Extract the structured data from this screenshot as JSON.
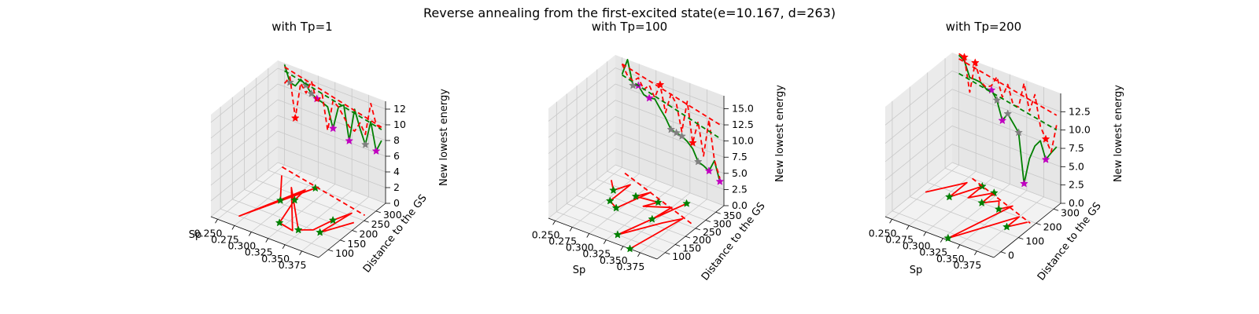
{
  "figure": {
    "suptitle": "Reverse annealing from the first-excited state(e=10.167, d=263)"
  },
  "chart_data": [
    {
      "type": "line3d",
      "title": "with Tp=1",
      "xlabel": "Sp",
      "ylabel": "Distance to the GS",
      "zlabel": "New lowest energy",
      "xlim": [
        0.24,
        0.4
      ],
      "ylim": [
        60,
        340
      ],
      "zlim": [
        0,
        13
      ],
      "xticks": [
        "0.250",
        "0.275",
        "0.300",
        "0.325",
        "0.350",
        "0.375"
      ],
      "yticks": [
        "100",
        "150",
        "200",
        "250",
        "300"
      ],
      "zticks": [
        "0",
        "2",
        "4",
        "6",
        "8",
        "10",
        "12"
      ],
      "series": [
        {
          "color": "#008000",
          "style": "solid",
          "marker_color": "#808080",
          "x": [
            0.25,
            0.258,
            0.266,
            0.274,
            0.282,
            0.29,
            0.298,
            0.306,
            0.314,
            0.322,
            0.33,
            0.338,
            0.346,
            0.354,
            0.362,
            0.37,
            0.378,
            0.386,
            0.394
          ],
          "z": [
            12.8,
            10.8,
            10.6,
            11.7,
            11.2,
            10.4,
            10.0,
            9.8,
            9.5,
            7.0,
            10.0,
            10.5,
            6.2,
            10.5,
            8.3,
            6.5,
            9.7,
            6.2,
            7.8
          ],
          "markers": [
            1,
            4,
            5,
            6,
            9,
            12,
            15,
            17
          ],
          "marker_colors": [
            "#808080",
            "#808080",
            "#808080",
            "#c000c0",
            "#c000c0",
            "#c000c0",
            "#808080",
            "#c000c0"
          ]
        },
        {
          "color": "#ff0000",
          "style": "dashed",
          "x": [
            0.25,
            0.258,
            0.266,
            0.274,
            0.282,
            0.29,
            0.298,
            0.306,
            0.314,
            0.322,
            0.33,
            0.338,
            0.346,
            0.354,
            0.362,
            0.37,
            0.378,
            0.386,
            0.394
          ],
          "z": [
            10.4,
            11.5,
            6.5,
            11.2,
            10.2,
            12.0,
            9.5,
            10.8,
            6.5,
            10.5,
            10.0,
            9.0,
            8.0,
            7.7,
            9.0,
            7.8,
            12.0,
            9.6,
            9.2
          ],
          "markers": [
            2
          ],
          "marker_colors": [
            "#ff0000"
          ]
        },
        {
          "color": "#ff0000",
          "style": "dashed",
          "trend": true,
          "x": [
            0.25,
            0.394
          ],
          "z": [
            12.5,
            9.5
          ]
        },
        {
          "color": "#008000",
          "style": "dashed",
          "trend": true,
          "x": [
            0.25,
            0.394
          ],
          "z": [
            12.0,
            9.2
          ]
        },
        {
          "color": "#ff0000",
          "style": "solid",
          "marker_color": "#008000",
          "projection": "floor",
          "x": [
            0.26,
            0.29,
            0.31,
            0.268,
            0.302,
            0.304,
            0.317,
            0.34,
            0.285,
            0.345,
            0.36,
            0.368,
            0.378,
            0.37,
            0.392
          ],
          "y": [
            300,
            210,
            300,
            100,
            280,
            230,
            130,
            120,
            270,
            130,
            150,
            210,
            260,
            150,
            230
          ],
          "markers": [
            1,
            2,
            5,
            6,
            9,
            11,
            13
          ]
        },
        {
          "color": "#ff0000",
          "style": "dashed",
          "trend": true,
          "projection": "floor",
          "x": [
            0.25,
            0.394
          ],
          "y": [
            330,
            270
          ]
        }
      ]
    },
    {
      "type": "line3d",
      "title": "with Tp=100",
      "xlabel": "Sp",
      "ylabel": "Distance to the GS",
      "zlabel": "New lowest energy",
      "xlim": [
        0.24,
        0.4
      ],
      "ylim": [
        60,
        390
      ],
      "zlim": [
        0,
        17
      ],
      "xticks": [
        "0.250",
        "0.275",
        "0.300",
        "0.325",
        "0.350",
        "0.375"
      ],
      "yticks": [
        "100",
        "150",
        "200",
        "250",
        "300",
        "350"
      ],
      "zticks": [
        "0.0",
        "2.5",
        "5.0",
        "7.5",
        "10.0",
        "12.5",
        "15.0"
      ],
      "series": [
        {
          "color": "#008000",
          "style": "solid",
          "x": [
            0.25,
            0.258,
            0.266,
            0.274,
            0.282,
            0.29,
            0.298,
            0.306,
            0.314,
            0.322,
            0.33,
            0.338,
            0.346,
            0.354,
            0.362,
            0.37,
            0.378,
            0.386,
            0.394
          ],
          "z": [
            14.4,
            17.0,
            13.3,
            13.6,
            12.5,
            12.3,
            12.5,
            11.3,
            10.2,
            8.7,
            8.5,
            8.3,
            7.8,
            7.0,
            5.3,
            5.0,
            4.5,
            6.4,
            3.5
          ],
          "markers": [
            2,
            3,
            5,
            9,
            10,
            11,
            14,
            16,
            18
          ],
          "marker_colors": [
            "#808080",
            "#c000c0",
            "#c000c0",
            "#808080",
            "#808080",
            "#808080",
            "#808080",
            "#c000c0",
            "#c000c0"
          ]
        },
        {
          "color": "#ff0000",
          "style": "dashed",
          "x": [
            0.25,
            0.258,
            0.266,
            0.274,
            0.282,
            0.29,
            0.298,
            0.306,
            0.314,
            0.322,
            0.33,
            0.338,
            0.346,
            0.354,
            0.362,
            0.37,
            0.378,
            0.386,
            0.394
          ],
          "z": [
            16.0,
            14.5,
            14.0,
            14.8,
            13.3,
            14.3,
            12.7,
            15.0,
            11.0,
            14.2,
            13.0,
            9.0,
            14.0,
            7.9,
            11.5,
            6.5,
            12.4,
            6.5,
            4.0
          ],
          "markers": [
            7,
            13
          ],
          "marker_colors": [
            "#ff0000",
            "#ff0000"
          ]
        },
        {
          "color": "#ff0000",
          "style": "dashed",
          "trend": true,
          "x": [
            0.25,
            0.394
          ],
          "z": [
            16.0,
            12.3
          ]
        },
        {
          "color": "#008000",
          "style": "dashed",
          "trend": true,
          "x": [
            0.25,
            0.394
          ],
          "z": [
            14.3,
            10.2
          ]
        },
        {
          "color": "#ff0000",
          "style": "solid",
          "marker_color": "#008000",
          "projection": "floor",
          "x": [
            0.255,
            0.27,
            0.28,
            0.28,
            0.295,
            0.31,
            0.3,
            0.33,
            0.32,
            0.35,
            0.345,
            0.36,
            0.33,
            0.36,
            0.375,
            0.36
          ],
          "y": [
            320,
            280,
            330,
            230,
            210,
            330,
            290,
            300,
            260,
            300,
            220,
            340,
            100,
            220,
            270,
            60
          ],
          "markers": [
            1,
            3,
            4,
            6,
            7,
            10,
            11,
            12,
            15
          ]
        },
        {
          "color": "#ff0000",
          "style": "dashed",
          "trend": true,
          "projection": "floor",
          "x": [
            0.26,
            0.394
          ],
          "y": [
            370,
            260
          ]
        }
      ]
    },
    {
      "type": "line3d",
      "title": "with Tp=200",
      "xlabel": "Sp",
      "ylabel": "Distance to the GS",
      "zlabel": "New lowest energy",
      "xlim": [
        0.24,
        0.4
      ],
      "ylim": [
        -40,
        340
      ],
      "zlim": [
        0,
        15
      ],
      "xticks": [
        "0.250",
        "0.275",
        "0.300",
        "0.325",
        "0.350",
        "0.375"
      ],
      "yticks": [
        "0",
        "100",
        "200",
        "300"
      ],
      "zticks": [
        "0.0",
        "2.5",
        "5.0",
        "7.5",
        "10.0",
        "12.5"
      ],
      "series": [
        {
          "color": "#008000",
          "style": "solid",
          "x": [
            0.25,
            0.258,
            0.266,
            0.274,
            0.282,
            0.29,
            0.298,
            0.306,
            0.314,
            0.322,
            0.33,
            0.338,
            0.346,
            0.354,
            0.362,
            0.37,
            0.378,
            0.386,
            0.394
          ],
          "z": [
            15.0,
            14.5,
            12.5,
            12.5,
            12.4,
            11.8,
            11.9,
            10.8,
            8.3,
            9.5,
            8.5,
            7.5,
            0.8,
            4.5,
            6.5,
            7.5,
            5.2,
            6.4,
            7.5
          ],
          "markers": [
            6,
            7,
            8,
            9,
            11,
            12,
            16
          ],
          "marker_colors": [
            "#c000c0",
            "#808080",
            "#c000c0",
            "#808080",
            "#808080",
            "#c000c0",
            "#c000c0"
          ]
        },
        {
          "color": "#ff0000",
          "style": "dashed",
          "x": [
            0.25,
            0.258,
            0.266,
            0.274,
            0.282,
            0.29,
            0.298,
            0.306,
            0.314,
            0.322,
            0.33,
            0.338,
            0.346,
            0.354,
            0.362,
            0.37,
            0.378,
            0.386,
            0.394
          ],
          "z": [
            15.2,
            15.0,
            10.5,
            14.8,
            12.5,
            12.0,
            12.5,
            14.0,
            11.5,
            13.5,
            11.0,
            11.0,
            14.5,
            11.0,
            13.5,
            9.5,
            8.0,
            6.5,
            10.5
          ],
          "markers": [
            1,
            3,
            16
          ],
          "marker_colors": [
            "#ff0000",
            "#ff0000",
            "#ff0000"
          ]
        },
        {
          "color": "#ff0000",
          "style": "dashed",
          "trend": true,
          "x": [
            0.25,
            0.394
          ],
          "z": [
            14.5,
            11.8
          ]
        },
        {
          "color": "#008000",
          "style": "dashed",
          "trend": true,
          "x": [
            0.25,
            0.394
          ],
          "z": [
            12.5,
            9.8
          ]
        },
        {
          "color": "#ff0000",
          "style": "solid",
          "marker_color": "#008000",
          "projection": "floor",
          "x": [
            0.25,
            0.28,
            0.28,
            0.3,
            0.3,
            0.32,
            0.32,
            0.335,
            0.345,
            0.355,
            0.33,
            0.375,
            0.375,
            0.39
          ],
          "y": [
            150,
            270,
            170,
            280,
            200,
            270,
            200,
            240,
            200,
            240,
            -30,
            200,
            130,
            190
          ],
          "markers": [
            2,
            3,
            5,
            6,
            8,
            10,
            12
          ]
        },
        {
          "color": "#ff0000",
          "style": "dashed",
          "trend": true,
          "projection": "floor",
          "x": [
            0.28,
            0.394
          ],
          "y": [
            300,
            190
          ]
        }
      ]
    }
  ]
}
